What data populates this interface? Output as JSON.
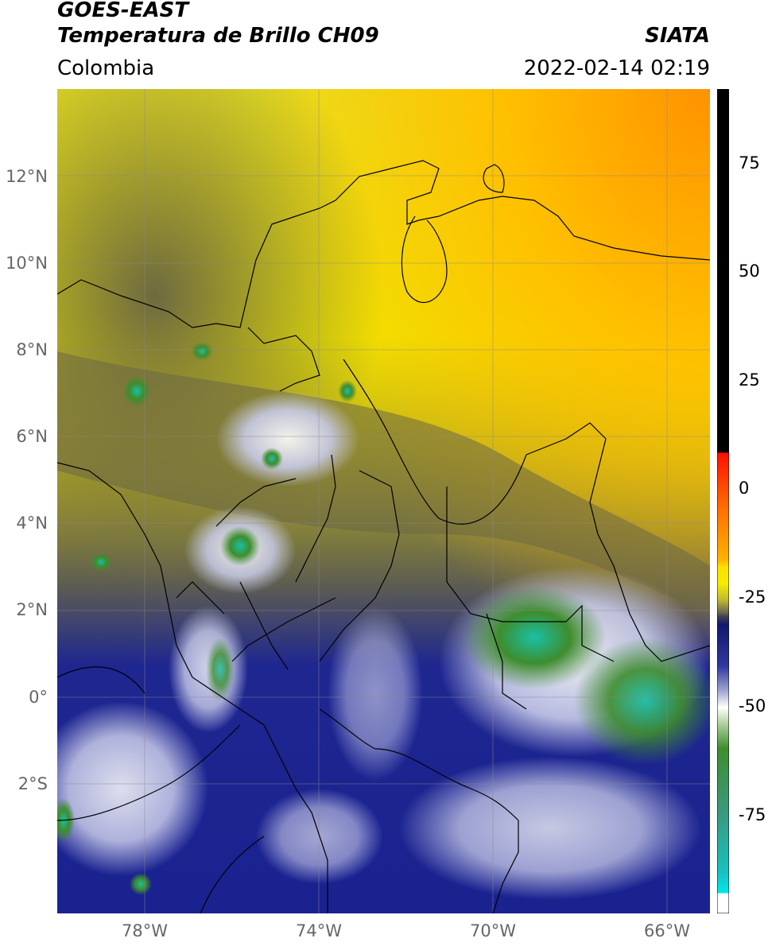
{
  "header": {
    "title_line1": "GOES-EAST",
    "title_line2": "Temperatura de Brillo CH09",
    "brand": "SIATA",
    "region": "Colombia",
    "timestamp": "2022-02-14 02:19"
  },
  "map": {
    "lat_ticks": [
      "12°N",
      "10°N",
      "8°N",
      "6°N",
      "4°N",
      "2°N",
      "0°",
      "2°S"
    ],
    "lon_ticks": [
      "78°W",
      "74°W",
      "70°W",
      "66°W"
    ]
  },
  "colorbar": {
    "ticks": [
      "75",
      "50",
      "25",
      "0",
      "-25",
      "-50",
      "-75"
    ]
  },
  "colors": {
    "warm_orange": "#ff9a00",
    "yellow": "#f5ec00",
    "olive": "#8c8530",
    "navy": "#161d8a",
    "white": "#ffffff",
    "green": "#3e8d2e",
    "cyan": "#19c0a5"
  }
}
